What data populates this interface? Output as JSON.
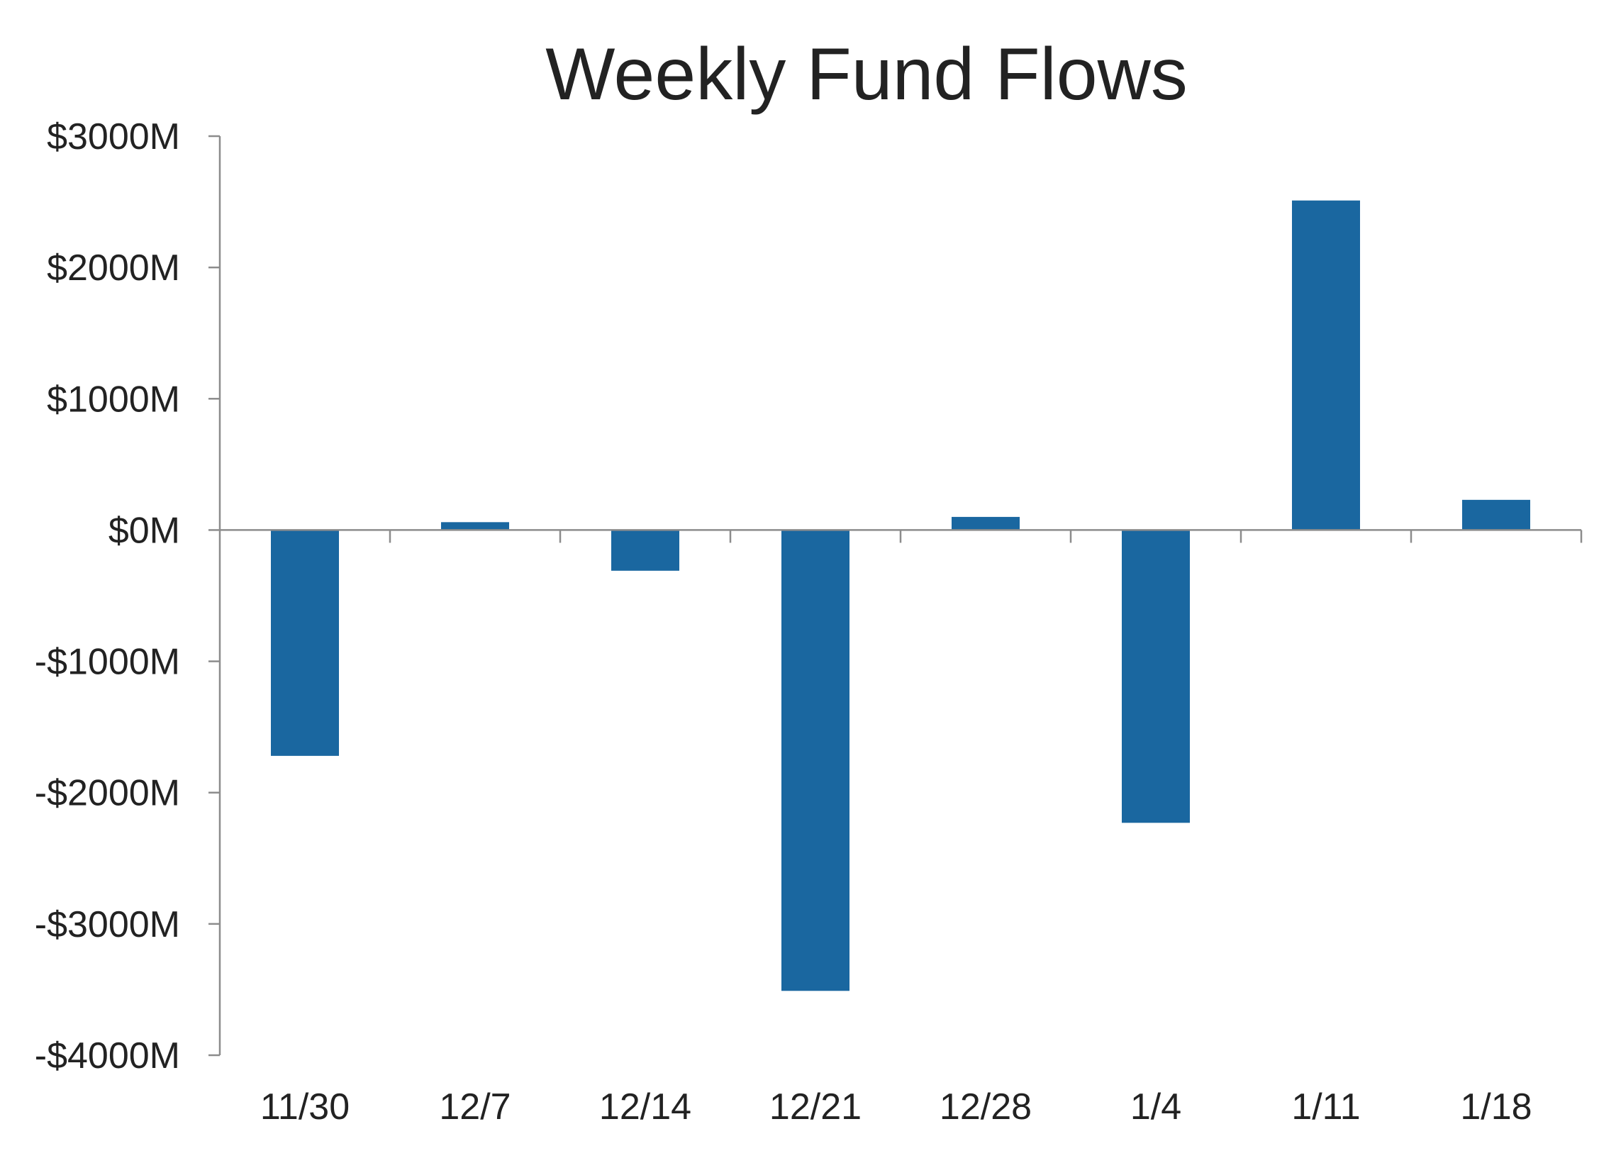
{
  "chart_data": {
    "type": "bar",
    "title": "Weekly Fund Flows",
    "xlabel": "",
    "ylabel": "",
    "categories": [
      "11/30",
      "12/7",
      "12/14",
      "12/21",
      "12/28",
      "1/4",
      "1/11",
      "1/18"
    ],
    "values": [
      -1720,
      60,
      -310,
      -3510,
      100,
      -2230,
      2510,
      230
    ],
    "ylim": [
      -4000,
      3000
    ],
    "yticks": [
      3000,
      2000,
      1000,
      0,
      -1000,
      -2000,
      -3000,
      -4000
    ],
    "ytick_labels": [
      "$3000M",
      "$2000M",
      "$1000M",
      "$0M",
      "-$1000M",
      "-$2000M",
      "-$3000M",
      "-$4000M"
    ],
    "grid": false,
    "legend": "none",
    "colors": {
      "bar": "#1a67a0",
      "axis": "#8c8c8c",
      "text": "#222222"
    }
  }
}
